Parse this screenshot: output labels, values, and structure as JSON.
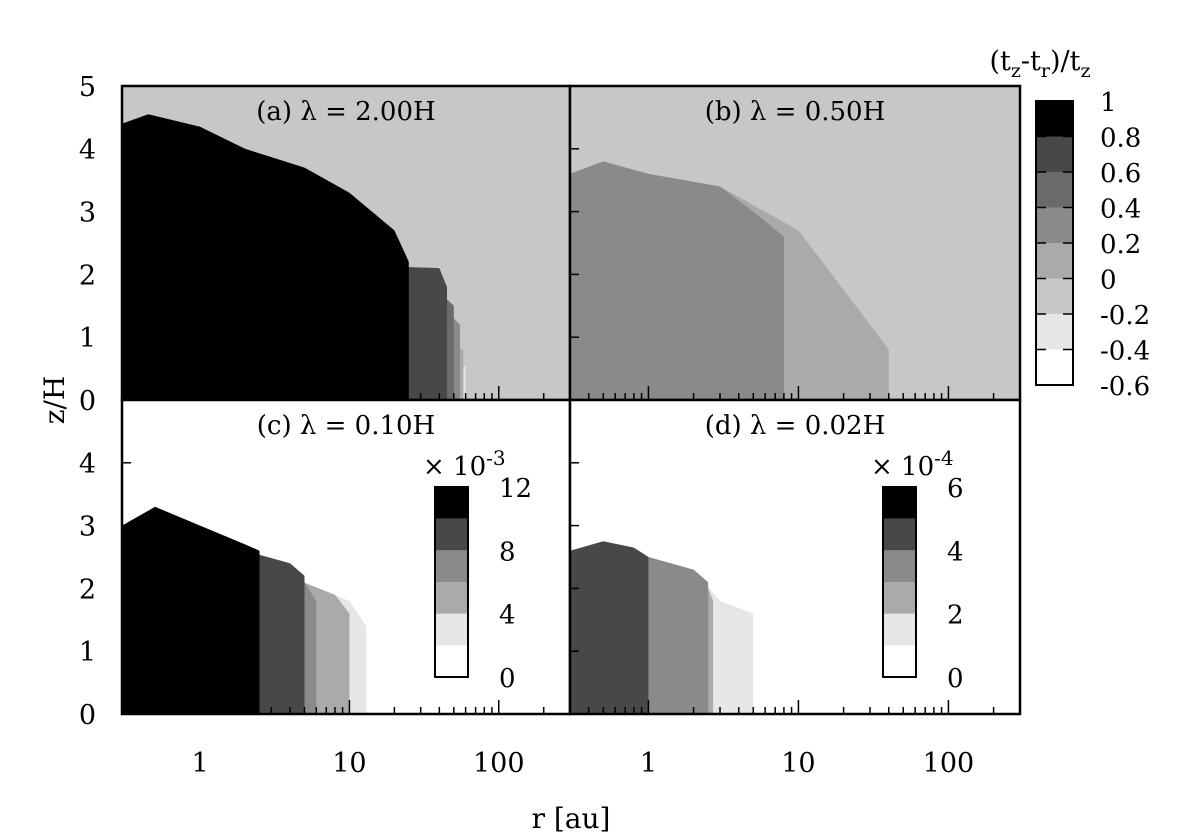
{
  "chart_data": {
    "type": "heatmap",
    "xlabel": "r [au]",
    "ylabel": "z/H",
    "x_scale": "log",
    "xlim": [
      0.3,
      300
    ],
    "ylim": [
      0,
      5
    ],
    "x_ticks": [
      1,
      10,
      100
    ],
    "x_tick_labels": [
      "1",
      "10",
      "100"
    ],
    "y_tick_labels": [
      "0",
      "1",
      "2",
      "3",
      "4",
      "5"
    ],
    "panels": [
      {
        "id": "a",
        "tag": "(a)",
        "title": "λ = 2.00H",
        "background": "#c7c7c7",
        "levels": [
          {
            "color": "#e6e6e6",
            "r": [
              0.3,
              60
            ],
            "z": [
              0.45,
              0.5
            ],
            "top": [
              [
                0.3,
                0.5
              ],
              [
                1,
                0.5
              ],
              [
                10,
                0.5
              ],
              [
                55,
                0.5
              ],
              [
                60,
                0.55
              ]
            ]
          },
          {
            "color": "#aaaaaa",
            "top": [
              [
                0.3,
                0.9
              ],
              [
                3,
                0.85
              ],
              [
                10,
                0.88
              ],
              [
                50,
                0.85
              ],
              [
                58,
                0.8
              ]
            ]
          },
          {
            "color": "#8a8a8a",
            "top": [
              [
                0.3,
                1.35
              ],
              [
                3,
                1.3
              ],
              [
                10,
                1.3
              ],
              [
                50,
                1.3
              ],
              [
                55,
                1.2
              ]
            ]
          },
          {
            "color": "#6a6a6a",
            "top": [
              [
                0.3,
                1.7
              ],
              [
                3,
                1.65
              ],
              [
                10,
                1.7
              ],
              [
                45,
                1.6
              ],
              [
                50,
                1.5
              ]
            ]
          },
          {
            "color": "#484848",
            "top": [
              [
                0.3,
                2.2
              ],
              [
                3,
                2.1
              ],
              [
                10,
                2.15
              ],
              [
                40,
                2.1
              ],
              [
                45,
                1.8
              ]
            ]
          },
          {
            "color": "#000000",
            "top": [
              [
                0.3,
                4.4
              ],
              [
                0.45,
                4.55
              ],
              [
                1,
                4.35
              ],
              [
                2,
                4.0
              ],
              [
                5,
                3.7
              ],
              [
                10,
                3.3
              ],
              [
                20,
                2.7
              ],
              [
                25,
                2.2
              ]
            ]
          }
        ]
      },
      {
        "id": "b",
        "tag": "(b)",
        "title": "λ = 0.50H",
        "background": "#c7c7c7",
        "levels": [
          {
            "color": "#aaaaaa",
            "top": [
              [
                0.3,
                3.6
              ],
              [
                0.5,
                3.8
              ],
              [
                1,
                3.6
              ],
              [
                3,
                3.4
              ],
              [
                10,
                2.7
              ],
              [
                30,
                1.2
              ],
              [
                40,
                0.8
              ]
            ]
          },
          {
            "color": "#8a8a8a",
            "top": [
              [
                0.3,
                3.6
              ],
              [
                0.5,
                3.8
              ],
              [
                1,
                3.6
              ],
              [
                3,
                3.4
              ],
              [
                5,
                3.0
              ],
              [
                8,
                2.6
              ]
            ]
          }
        ]
      },
      {
        "id": "c",
        "tag": "(c)",
        "title": "λ = 0.10H",
        "background": "#ffffff",
        "colorbar": {
          "exponent": "× 10-3",
          "ticks": [
            "0",
            "4",
            "8",
            "12"
          ],
          "max": 12
        },
        "levels": [
          {
            "color": "#e6e6e6",
            "top": [
              [
                0.3,
                2.4
              ],
              [
                3,
                2.3
              ],
              [
                10,
                1.8
              ],
              [
                13,
                1.4
              ]
            ]
          },
          {
            "color": "#aaaaaa",
            "top": [
              [
                0.3,
                2.4
              ],
              [
                3,
                2.3
              ],
              [
                8,
                1.9
              ],
              [
                10,
                1.6
              ]
            ]
          },
          {
            "color": "#8a8a8a",
            "top": [
              [
                0.3,
                2.5
              ],
              [
                3,
                2.45
              ],
              [
                5,
                2.1
              ],
              [
                6,
                1.8
              ]
            ]
          },
          {
            "color": "#484848",
            "top": [
              [
                0.3,
                2.7
              ],
              [
                2,
                2.6
              ],
              [
                4,
                2.4
              ],
              [
                5,
                2.2
              ]
            ]
          },
          {
            "color": "#000000",
            "top": [
              [
                0.3,
                3.0
              ],
              [
                0.5,
                3.3
              ],
              [
                1,
                3.0
              ],
              [
                2,
                2.7
              ],
              [
                2.5,
                2.6
              ]
            ]
          }
        ]
      },
      {
        "id": "d",
        "tag": "(d)",
        "title": "λ = 0.02H",
        "background": "#ffffff",
        "colorbar": {
          "exponent": "× 10-4",
          "ticks": [
            "0",
            "2",
            "4",
            "6"
          ],
          "max": 6
        },
        "levels": [
          {
            "color": "#e6e6e6",
            "top": [
              [
                0.3,
                2.5
              ],
              [
                2,
                2.3
              ],
              [
                3,
                1.8
              ],
              [
                5,
                1.6
              ]
            ]
          },
          {
            "color": "#aaaaaa",
            "top": [
              [
                0.3,
                2.5
              ],
              [
                2,
                2.3
              ],
              [
                2.5,
                2.0
              ],
              [
                2.7,
                1.8
              ]
            ]
          },
          {
            "color": "#8a8a8a",
            "top": [
              [
                0.3,
                2.6
              ],
              [
                1,
                2.5
              ],
              [
                2,
                2.3
              ],
              [
                2.5,
                2.1
              ]
            ]
          },
          {
            "color": "#484848",
            "top": [
              [
                0.3,
                2.6
              ],
              [
                0.5,
                2.75
              ],
              [
                0.8,
                2.65
              ],
              [
                1,
                2.5
              ]
            ]
          }
        ]
      }
    ],
    "main_colorbar": {
      "label": "(tz-tr)/tz",
      "ticks": [
        "1",
        "0.8",
        "0.6",
        "0.4",
        "0.2",
        "0",
        "-0.2",
        "-0.4",
        "-0.6"
      ],
      "colors": [
        "#000000",
        "#484848",
        "#6a6a6a",
        "#8a8a8a",
        "#aaaaaa",
        "#c7c7c7",
        "#e6e6e6",
        "#ffffff"
      ]
    }
  }
}
